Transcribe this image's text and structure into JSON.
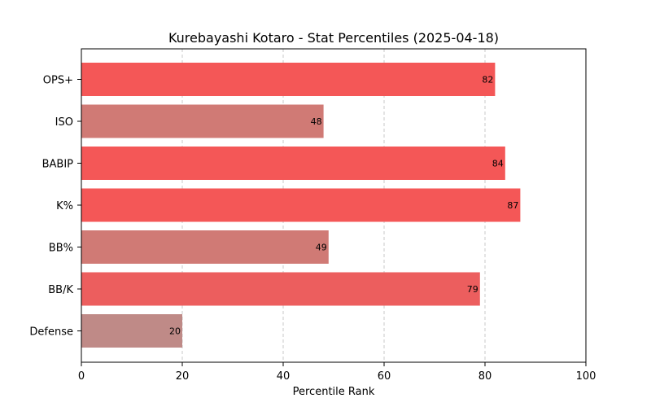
{
  "chart_data": {
    "type": "bar",
    "orientation": "horizontal",
    "title": "Kurebayashi Kotaro - Stat Percentiles (2025-04-18)",
    "xlabel": "Percentile Rank",
    "ylabel": "",
    "xlim": [
      0,
      100
    ],
    "xticks": [
      0,
      20,
      40,
      60,
      80,
      100
    ],
    "grid": "x-dashed",
    "categories": [
      "OPS+",
      "ISO",
      "BABIP",
      "K%",
      "BB%",
      "BB/K",
      "Defense"
    ],
    "values": [
      82,
      48,
      84,
      87,
      49,
      79,
      20
    ],
    "colors": [
      "#f45757",
      "#d07a75",
      "#f45757",
      "#f45757",
      "#d07a75",
      "#ec5e5e",
      "#bf8a87"
    ]
  }
}
